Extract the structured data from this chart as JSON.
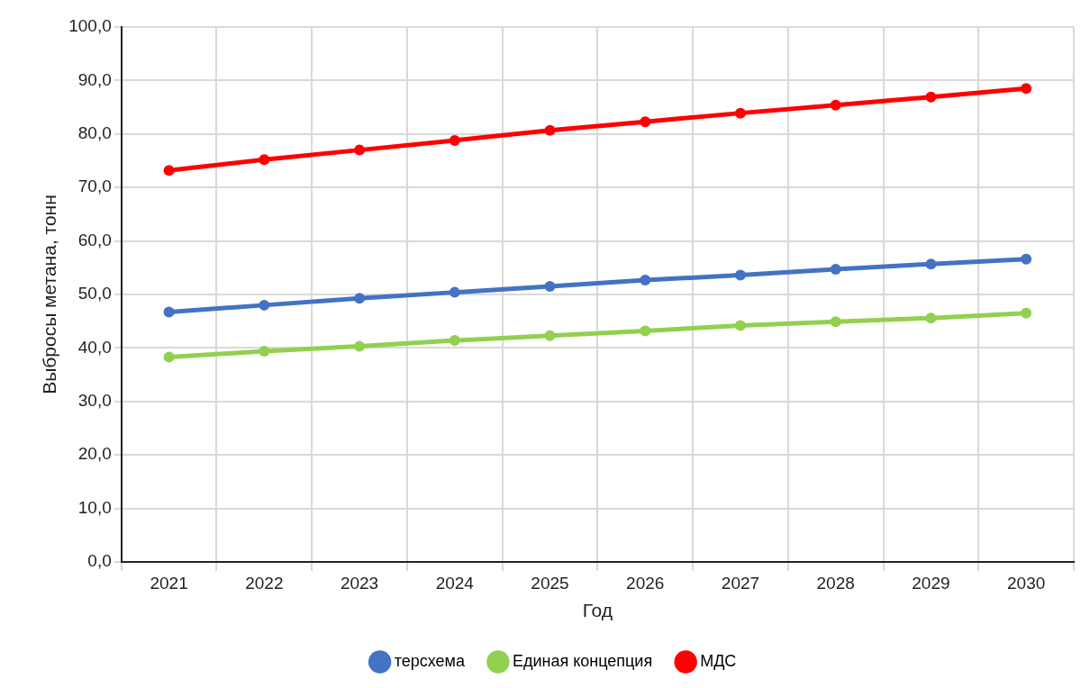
{
  "chart_data": {
    "type": "line",
    "xlabel": "Год",
    "ylabel": "Выбросы метана, тонн",
    "categories": [
      "2021",
      "2022",
      "2023",
      "2024",
      "2025",
      "2026",
      "2027",
      "2028",
      "2029",
      "2030"
    ],
    "series": [
      {
        "name": "терсхема",
        "color": "#4472c4",
        "values": [
          46.7,
          48.0,
          49.3,
          50.4,
          51.5,
          52.7,
          53.6,
          54.7,
          55.7,
          56.6
        ]
      },
      {
        "name": "Единая концепция",
        "color": "#92d050",
        "values": [
          38.3,
          39.4,
          40.3,
          41.4,
          42.3,
          43.2,
          44.2,
          44.9,
          45.6,
          46.5
        ]
      },
      {
        "name": "МДС",
        "color": "#ff0000",
        "values": [
          73.2,
          75.2,
          77.0,
          78.8,
          80.7,
          82.3,
          83.9,
          85.4,
          86.9,
          88.5
        ]
      }
    ],
    "ylim": [
      0,
      100
    ],
    "yticks": [
      {
        "value": 0,
        "label": "0,0"
      },
      {
        "value": 10,
        "label": "10,0"
      },
      {
        "value": 20,
        "label": "20,0"
      },
      {
        "value": 30,
        "label": "30,0"
      },
      {
        "value": 40,
        "label": "40,0"
      },
      {
        "value": 50,
        "label": "50,0"
      },
      {
        "value": 60,
        "label": "60,0"
      },
      {
        "value": 70,
        "label": "70,0"
      },
      {
        "value": 80,
        "label": "80,0"
      },
      {
        "value": 90,
        "label": "90,0"
      },
      {
        "value": 100,
        "label": "100,0"
      }
    ],
    "grid": true,
    "legend": "bottom",
    "marker": "circle",
    "line_style": "solid"
  }
}
